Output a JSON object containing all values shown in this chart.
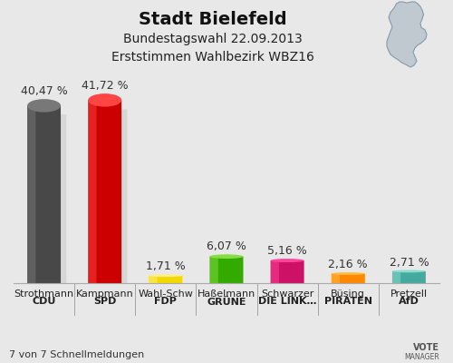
{
  "title": "Stadt Bielefeld",
  "subtitle1": "Bundestagswahl 22.09.2013",
  "subtitle2": "Erststimmen Wahlbezirk WBZ16",
  "footer": "7 von 7 Schnellmeldungen",
  "categories_line1": [
    "Strothmann",
    "Kampmann",
    "Wahl-Schw",
    "Haßelmann",
    "Schwarzer",
    "Büsing",
    "Pretzell"
  ],
  "categories_line2": [
    "CDU",
    "SPD",
    "FDP",
    "GRÜNE",
    "DIE LINK…",
    "PIRATEN",
    "AfD"
  ],
  "values": [
    40.47,
    41.72,
    1.71,
    6.07,
    5.16,
    2.16,
    2.71
  ],
  "value_labels": [
    "40,47 %",
    "41,72 %",
    "1,71 %",
    "6,07 %",
    "5,16 %",
    "2,16 %",
    "2,71 %"
  ],
  "bar_colors": [
    "#484848",
    "#cc0000",
    "#f5d800",
    "#33aa00",
    "#cc1166",
    "#ff8800",
    "#44aaa0"
  ],
  "bar_colors_light": [
    "#787878",
    "#ff4444",
    "#ffee88",
    "#88dd44",
    "#ff4499",
    "#ffbb44",
    "#88ddcc"
  ],
  "bar_colors_dark": [
    "#282828",
    "#880000",
    "#c8aa00",
    "#117700",
    "#880044",
    "#cc6600",
    "#228877"
  ],
  "shadow_color": "#cccccc",
  "background_color": "#e8e8e8",
  "ylim": [
    0,
    48
  ],
  "title_fontsize": 14,
  "subtitle_fontsize": 10,
  "label_fontsize": 8,
  "value_fontsize": 9
}
